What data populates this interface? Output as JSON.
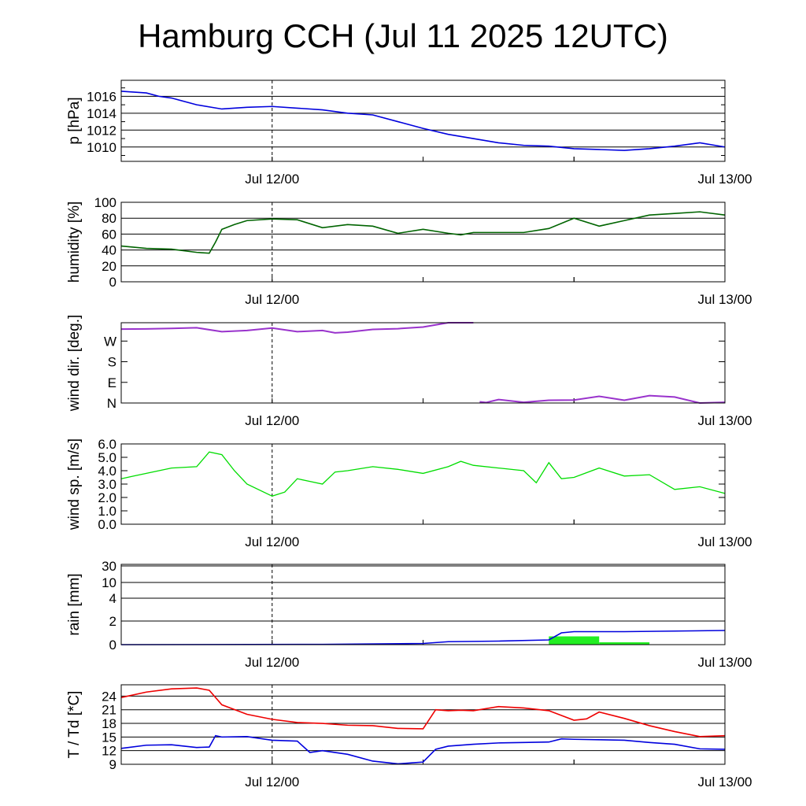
{
  "title": "Hamburg CCH (Jul 11 2025 12UTC)",
  "chart_data": [
    {
      "type": "line",
      "id": "pressure",
      "ylabel": "p [hPa]",
      "yticks": [
        1010,
        1012,
        1014,
        1016
      ],
      "tick_labels": [
        "1010",
        "1012",
        "1014",
        "1016"
      ],
      "ylim": [
        1008.3,
        1017.9
      ],
      "grid": "horizontal",
      "xtick_labels": [
        "Jul 12/00",
        "Jul 13/00"
      ],
      "x_hours": [
        0,
        2,
        3,
        4,
        6,
        8,
        10,
        12,
        14,
        16,
        18,
        20,
        22,
        24,
        26,
        28,
        30,
        32,
        34,
        36,
        38,
        40,
        42,
        44,
        46,
        48
      ],
      "series": [
        {
          "color": "#0000dd",
          "values": [
            1016.6,
            1016.4,
            1016.0,
            1015.8,
            1015.0,
            1014.5,
            1014.7,
            1014.8,
            1014.6,
            1014.4,
            1014.0,
            1013.8,
            1013.0,
            1012.2,
            1011.5,
            1011.0,
            1010.5,
            1010.2,
            1010.1,
            1009.8,
            1009.7,
            1009.6,
            1009.8,
            1010.1,
            1010.5,
            1010.0
          ]
        }
      ]
    },
    {
      "type": "line",
      "id": "humidity",
      "ylabel": "humidity [%]",
      "yticks": [
        0,
        20,
        40,
        60,
        80,
        100
      ],
      "tick_labels": [
        "0",
        "20",
        "40",
        "60",
        "80",
        "100"
      ],
      "ylim": [
        0,
        100
      ],
      "grid": "horizontal",
      "xtick_labels": [
        "Jul 12/00",
        "Jul 13/00"
      ],
      "x_hours": [
        0,
        2,
        4,
        6,
        7,
        7.5,
        8,
        9,
        10,
        12,
        14,
        16,
        18,
        20,
        22,
        24,
        26,
        27,
        28,
        30,
        32,
        34,
        36,
        38,
        40,
        42,
        44,
        46,
        48
      ],
      "series": [
        {
          "color": "#006400",
          "values": [
            45,
            42,
            41,
            37,
            36,
            50,
            66,
            72,
            77,
            79,
            78,
            68,
            72,
            70,
            61,
            66,
            61,
            59,
            62,
            62,
            62,
            67,
            80,
            70,
            77,
            84,
            86,
            88,
            84
          ]
        }
      ]
    },
    {
      "type": "scatter",
      "id": "wind_direction",
      "ylabel": "wind dir. [deg.]",
      "yticks": [
        0,
        90,
        180,
        270
      ],
      "tick_labels": [
        "N",
        "E",
        "S",
        "W"
      ],
      "ylim": [
        0,
        350
      ],
      "grid": "none",
      "xtick_labels": [
        "Jul 12/00",
        "Jul 13/00"
      ],
      "x_hours": [
        0,
        2,
        4,
        6,
        8,
        10,
        12,
        14,
        16,
        17,
        18,
        20,
        22,
        24,
        26,
        28,
        28.5,
        29,
        30,
        32,
        34,
        36,
        38,
        40,
        42,
        44,
        46,
        48
      ],
      "series": [
        {
          "color": "#9933cc",
          "values": [
            322,
            323,
            325,
            328,
            311,
            316,
            327,
            311,
            316,
            306,
            309,
            321,
            324,
            331,
            350,
            365,
            5,
            2,
            15,
            3,
            12,
            13,
            29,
            12,
            32,
            26,
            0,
            3
          ]
        }
      ]
    },
    {
      "type": "line",
      "id": "wind_speed",
      "ylabel": "wind sp. [m/s]",
      "yticks": [
        0.0,
        1.0,
        2.0,
        3.0,
        4.0,
        5.0,
        6.0
      ],
      "tick_labels": [
        "0.0",
        "1.0",
        "2.0",
        "3.0",
        "4.0",
        "5.0",
        "6.0"
      ],
      "ylim": [
        0,
        6.0
      ],
      "grid": "none",
      "xtick_labels": [
        "Jul 12/00",
        "Jul 13/00"
      ],
      "x_hours": [
        0,
        1,
        2,
        4,
        6,
        7,
        8,
        9,
        10,
        12,
        13,
        14,
        15,
        16,
        17,
        18,
        20,
        22,
        24,
        26,
        27,
        28,
        30,
        32,
        33,
        34,
        35,
        36,
        38,
        40,
        42,
        44,
        46,
        48
      ],
      "series": [
        {
          "color": "#00dd00",
          "values": [
            3.4,
            3.6,
            3.8,
            4.2,
            4.3,
            5.4,
            5.2,
            4.0,
            3.0,
            2.1,
            2.4,
            3.4,
            3.2,
            3.0,
            3.9,
            4.0,
            4.3,
            4.1,
            3.8,
            4.3,
            4.7,
            4.4,
            4.2,
            4.0,
            3.1,
            4.6,
            3.4,
            3.5,
            4.2,
            3.6,
            3.7,
            2.6,
            2.8,
            2.3
          ]
        }
      ]
    },
    {
      "type": "area",
      "id": "rain",
      "ylabel": "rain [mm]",
      "yticks": [
        0,
        2,
        4,
        10,
        30
      ],
      "tick_labels": [
        "0",
        "2",
        "4",
        "10",
        "30"
      ],
      "ylim": [
        0,
        30
      ],
      "grid": "horizontal",
      "xtick_labels": [
        "Jul 12/00",
        "Jul 13/00"
      ],
      "x_hours": [
        0,
        16,
        24,
        26,
        30,
        34,
        35,
        36,
        40,
        48
      ],
      "series": [
        {
          "color": "#0000dd",
          "values": [
            0,
            0.02,
            0.1,
            0.25,
            0.3,
            0.4,
            1.0,
            1.1,
            1.1,
            1.2
          ]
        }
      ],
      "bars": {
        "color": "#22ee22",
        "intervals": [
          {
            "from": 34,
            "to": 38,
            "value": 0.7
          },
          {
            "from": 38,
            "to": 42,
            "value": 0.2
          }
        ]
      }
    },
    {
      "type": "line",
      "id": "temperature_dewpoint",
      "ylabel": "T / Td [*C]",
      "yticks": [
        9,
        12,
        15,
        18,
        21,
        24
      ],
      "tick_labels": [
        "9",
        "12",
        "15",
        "18",
        "21",
        "24"
      ],
      "ylim": [
        9,
        26.5
      ],
      "grid": "horizontal",
      "xtick_labels": [
        "Jul 12/00",
        "Jul 13/00"
      ],
      "series": [
        {
          "color": "#ee0000",
          "x_hours": [
            0,
            2,
            4,
            6,
            7,
            8,
            10,
            12,
            14,
            16,
            18,
            20,
            22,
            24,
            25,
            26,
            27,
            28,
            30,
            32,
            34,
            36,
            37,
            38,
            40,
            42,
            44,
            46,
            48
          ],
          "values": [
            23.7,
            24.9,
            25.6,
            25.8,
            25.3,
            22.1,
            20.0,
            18.9,
            18.2,
            18.0,
            17.6,
            17.5,
            16.9,
            16.8,
            21.0,
            20.8,
            20.9,
            20.8,
            21.7,
            21.4,
            20.8,
            18.7,
            19.0,
            20.5,
            19.1,
            17.5,
            16.2,
            15.1,
            15.3
          ]
        },
        {
          "color": "#0000dd",
          "x_hours": [
            0,
            2,
            4,
            6,
            7,
            7.5,
            8,
            10,
            12,
            14,
            15,
            16,
            18,
            20,
            22,
            23,
            24,
            25,
            26,
            28,
            30,
            32,
            34,
            35,
            36,
            38,
            40,
            42,
            44,
            46,
            48
          ],
          "values": [
            12.5,
            13.2,
            13.3,
            12.7,
            12.8,
            15.3,
            15.0,
            15.1,
            14.3,
            14.1,
            11.6,
            12.0,
            11.2,
            9.7,
            9.1,
            9.3,
            9.5,
            12.3,
            13.0,
            13.4,
            13.7,
            13.8,
            13.9,
            14.6,
            14.5,
            14.4,
            14.3,
            13.8,
            13.4,
            12.4,
            12.3
          ]
        }
      ]
    }
  ]
}
